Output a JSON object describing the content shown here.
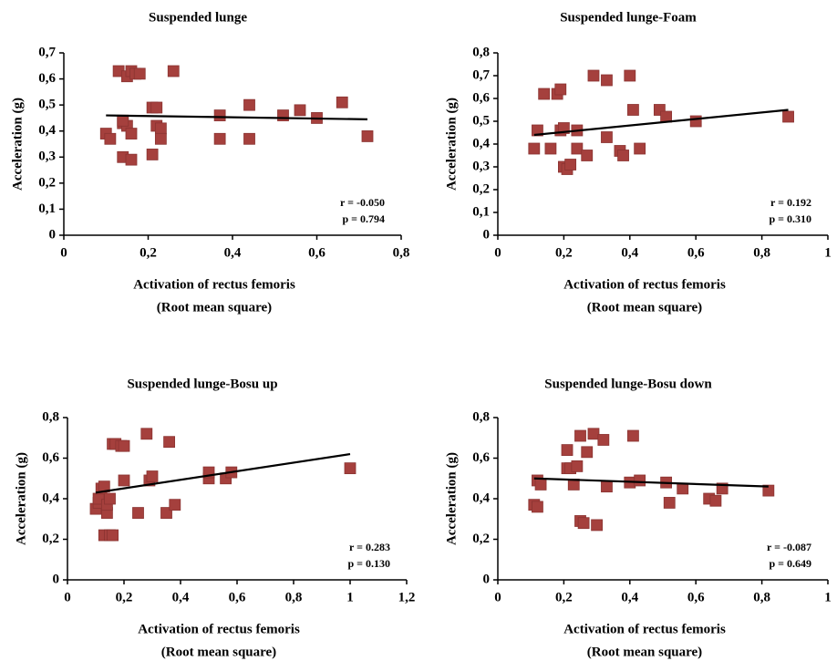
{
  "chart_data": [
    {
      "type": "scatter",
      "title": "Suspended lunge",
      "xlabel": [
        "Activation of rectus femoris",
        "(Root mean square)"
      ],
      "ylabel": "Acceleration (g)",
      "x": [
        0.1,
        0.11,
        0.13,
        0.14,
        0.15,
        0.16,
        0.17,
        0.18,
        0.14,
        0.16,
        0.15,
        0.16,
        0.14,
        0.21,
        0.22,
        0.22,
        0.23,
        0.23,
        0.21,
        0.26,
        0.37,
        0.37,
        0.44,
        0.44,
        0.52,
        0.56,
        0.6,
        0.66,
        0.72
      ],
      "values": [
        0.39,
        0.37,
        0.63,
        0.43,
        0.61,
        0.63,
        0.62,
        0.62,
        0.3,
        0.29,
        0.42,
        0.39,
        0.44,
        0.49,
        0.49,
        0.42,
        0.41,
        0.37,
        0.31,
        0.63,
        0.46,
        0.37,
        0.5,
        0.37,
        0.46,
        0.48,
        0.45,
        0.51,
        0.38
      ],
      "color": "#a5403d",
      "trendline": {
        "x": [
          0.1,
          0.72
        ],
        "y": [
          0.46,
          0.445
        ],
        "color": "#000000"
      },
      "annotations": [
        "r = -0.050",
        "p = 0.794"
      ],
      "xlim": [
        0,
        0.8
      ],
      "xticks": [
        0,
        {
          "value": 0.2,
          "label": "0,2"
        },
        {
          "value": 0.4,
          "label": "0,4"
        },
        {
          "value": 0.6,
          "label": "0,6"
        },
        {
          "value": 0.8,
          "label": "0,8"
        }
      ],
      "ylim": [
        0,
        0.7
      ],
      "yticks": [
        0,
        {
          "value": 0.1,
          "label": "0,1"
        },
        {
          "value": 0.2,
          "label": "0,2"
        },
        {
          "value": 0.3,
          "label": "0,3"
        },
        {
          "value": 0.4,
          "label": "0,4"
        },
        {
          "value": 0.5,
          "label": "0,5"
        },
        {
          "value": 0.6,
          "label": "0,6"
        },
        {
          "value": 0.7,
          "label": "0,7"
        }
      ]
    },
    {
      "type": "scatter",
      "title": "Suspended lunge-Foam",
      "xlabel": [
        "Activation of rectus femoris",
        "(Root mean square)"
      ],
      "ylabel": "Acceleration (g)",
      "x": [
        0.11,
        0.12,
        0.14,
        0.16,
        0.18,
        0.19,
        0.19,
        0.2,
        0.2,
        0.21,
        0.22,
        0.24,
        0.24,
        0.27,
        0.29,
        0.33,
        0.33,
        0.37,
        0.38,
        0.4,
        0.41,
        0.43,
        0.49,
        0.51,
        0.6,
        0.88
      ],
      "values": [
        0.38,
        0.46,
        0.62,
        0.38,
        0.62,
        0.64,
        0.46,
        0.47,
        0.3,
        0.29,
        0.31,
        0.46,
        0.38,
        0.35,
        0.7,
        0.68,
        0.43,
        0.37,
        0.35,
        0.7,
        0.55,
        0.38,
        0.55,
        0.52,
        0.5,
        0.52
      ],
      "color": "#a5403d",
      "trendline": {
        "x": [
          0.11,
          0.88
        ],
        "y": [
          0.44,
          0.55
        ],
        "color": "#000000"
      },
      "annotations": [
        "r = 0.192",
        "p = 0.310"
      ],
      "xlim": [
        0,
        1
      ],
      "xticks": [
        0,
        {
          "value": 0.2,
          "label": "0,2"
        },
        {
          "value": 0.4,
          "label": "0,4"
        },
        {
          "value": 0.6,
          "label": "0,6"
        },
        {
          "value": 0.8,
          "label": "0,8"
        },
        1
      ],
      "ylim": [
        0,
        0.8
      ],
      "yticks": [
        0,
        {
          "value": 0.1,
          "label": "0,1"
        },
        {
          "value": 0.2,
          "label": "0,2"
        },
        {
          "value": 0.3,
          "label": "0,3"
        },
        {
          "value": 0.4,
          "label": "0,4"
        },
        {
          "value": 0.5,
          "label": "0,5"
        },
        {
          "value": 0.6,
          "label": "0,6"
        },
        {
          "value": 0.7,
          "label": "0,7"
        },
        {
          "value": 0.8,
          "label": "0,8"
        }
      ]
    },
    {
      "type": "scatter",
      "title": "Suspended lunge-Bosu up",
      "xlabel": [
        "Activation of rectus femoris",
        "(Root mean square)"
      ],
      "ylabel": "Acceleration (g)",
      "x": [
        0.1,
        0.11,
        0.11,
        0.12,
        0.13,
        0.13,
        0.14,
        0.14,
        0.15,
        0.15,
        0.16,
        0.16,
        0.17,
        0.19,
        0.2,
        0.2,
        0.25,
        0.28,
        0.29,
        0.3,
        0.35,
        0.36,
        0.38,
        0.5,
        0.5,
        0.56,
        0.58,
        1.0
      ],
      "values": [
        0.35,
        0.38,
        0.4,
        0.45,
        0.46,
        0.22,
        0.33,
        0.37,
        0.4,
        0.22,
        0.67,
        0.22,
        0.67,
        0.66,
        0.66,
        0.49,
        0.33,
        0.72,
        0.49,
        0.51,
        0.33,
        0.68,
        0.37,
        0.5,
        0.53,
        0.5,
        0.53,
        0.55
      ],
      "color": "#a5403d",
      "trendline": {
        "x": [
          0.1,
          1.0
        ],
        "y": [
          0.43,
          0.62
        ],
        "color": "#000000"
      },
      "annotations": [
        "r = 0.283",
        "p = 0.130"
      ],
      "xlim": [
        0,
        1.2
      ],
      "xticks": [
        0,
        {
          "value": 0.2,
          "label": "0,2"
        },
        {
          "value": 0.4,
          "label": "0,4"
        },
        {
          "value": 0.6,
          "label": "0,6"
        },
        {
          "value": 0.8,
          "label": "0,8"
        },
        1,
        {
          "value": 1.2,
          "label": "1,2"
        }
      ],
      "ylim": [
        0,
        0.8
      ],
      "yticks": [
        0,
        {
          "value": 0.2,
          "label": "0,2"
        },
        {
          "value": 0.4,
          "label": "0,4"
        },
        {
          "value": 0.6,
          "label": "0,6"
        },
        {
          "value": 0.8,
          "label": "0,8"
        }
      ]
    },
    {
      "type": "scatter",
      "title": "Suspended lunge-Bosu down",
      "xlabel": [
        "Activation of rectus femoris",
        "(Root mean square)"
      ],
      "ylabel": "Acceleration (g)",
      "x": [
        0.11,
        0.12,
        0.12,
        0.13,
        0.21,
        0.21,
        0.22,
        0.23,
        0.24,
        0.25,
        0.25,
        0.26,
        0.27,
        0.29,
        0.3,
        0.32,
        0.33,
        0.4,
        0.41,
        0.43,
        0.51,
        0.52,
        0.56,
        0.64,
        0.66,
        0.68,
        0.82
      ],
      "values": [
        0.37,
        0.36,
        0.49,
        0.47,
        0.64,
        0.55,
        0.55,
        0.47,
        0.56,
        0.71,
        0.29,
        0.28,
        0.63,
        0.72,
        0.27,
        0.69,
        0.46,
        0.48,
        0.71,
        0.49,
        0.48,
        0.38,
        0.45,
        0.4,
        0.39,
        0.45,
        0.44
      ],
      "color": "#a5403d",
      "trendline": {
        "x": [
          0.11,
          0.82
        ],
        "y": [
          0.5,
          0.46
        ],
        "color": "#000000"
      },
      "annotations": [
        "r = -0.087",
        "p = 0.649"
      ],
      "xlim": [
        0,
        1
      ],
      "xticks": [
        0,
        {
          "value": 0.2,
          "label": "0,2"
        },
        {
          "value": 0.4,
          "label": "0,4"
        },
        {
          "value": 0.6,
          "label": "0,6"
        },
        {
          "value": 0.8,
          "label": "0,8"
        },
        1
      ],
      "ylim": [
        0,
        0.8
      ],
      "yticks": [
        0,
        {
          "value": 0.2,
          "label": "0,2"
        },
        {
          "value": 0.4,
          "label": "0,4"
        },
        {
          "value": 0.6,
          "label": "0,6"
        },
        {
          "value": 0.8,
          "label": "0,8"
        }
      ]
    }
  ]
}
